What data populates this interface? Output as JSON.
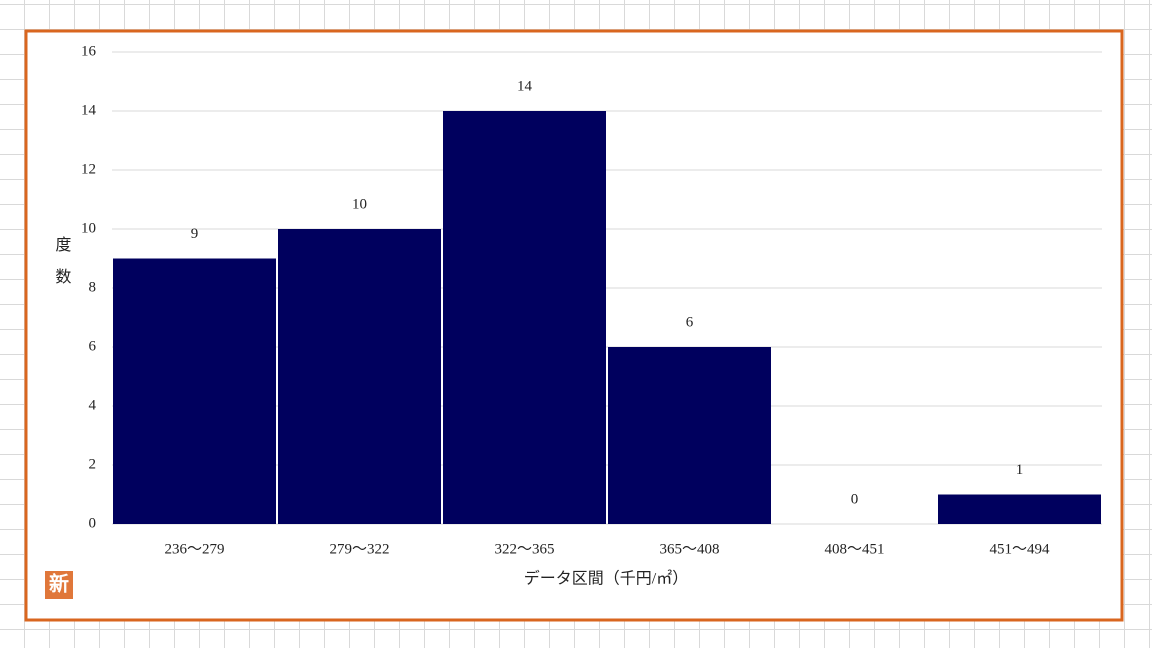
{
  "chart_data": {
    "type": "bar",
    "y_label": "度数",
    "x_label": "データ区間（千円/㎡）",
    "badge": "新",
    "categories": [
      "236～279",
      "279～322",
      "322～365",
      "365～408",
      "408～451",
      "451～494"
    ],
    "values": [
      9,
      10,
      14,
      6,
      0,
      1
    ],
    "color": "#00005e",
    "ylim": [
      0,
      16
    ],
    "yticks": [
      0,
      2,
      4,
      6,
      8,
      10,
      12,
      14,
      16
    ],
    "grid": true,
    "data_labels": true
  }
}
